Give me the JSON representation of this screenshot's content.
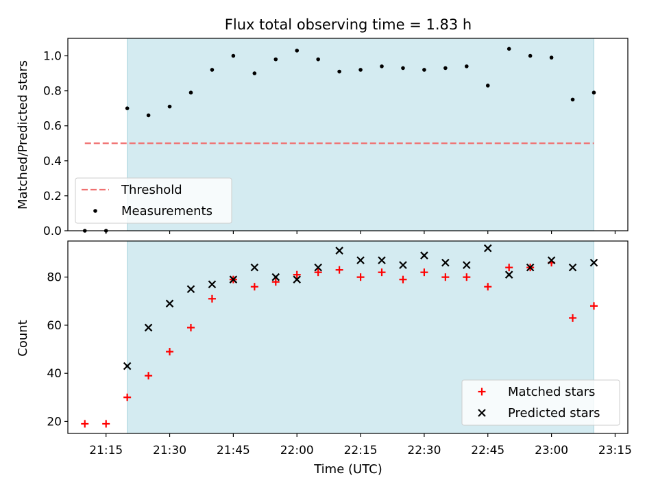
{
  "chart_data": {
    "title": "Flux total observing time = 1.83 h",
    "xlabel": "Time (UTC)",
    "x_ticks": [
      "21:15",
      "21:30",
      "21:45",
      "22:00",
      "22:15",
      "22:30",
      "22:45",
      "23:00",
      "23:15"
    ],
    "x_times": [
      "21:10",
      "21:15",
      "21:20",
      "21:25",
      "21:30",
      "21:35",
      "21:40",
      "21:45",
      "21:50",
      "21:55",
      "22:00",
      "22:05",
      "22:10",
      "22:15",
      "22:20",
      "22:25",
      "22:30",
      "22:35",
      "22:40",
      "22:45",
      "22:50",
      "22:55",
      "23:00",
      "23:05",
      "23:10"
    ],
    "observing_window": [
      "21:20",
      "23:10"
    ],
    "panels": [
      {
        "type": "scatter",
        "ylabel": "Matched/Predicted stars",
        "ylim": [
          0,
          1.1
        ],
        "y_ticks": [
          "0.0",
          "0.2",
          "0.4",
          "0.6",
          "0.8",
          "1.0"
        ],
        "legend_position": "lower-left",
        "threshold": {
          "name": "Threshold",
          "value": 0.5,
          "color": "#f07070"
        },
        "series": [
          {
            "name": "Measurements",
            "marker": "dot",
            "color": "#000000",
            "values": [
              0.0,
              0.0,
              0.7,
              0.66,
              0.71,
              0.79,
              0.92,
              1.0,
              0.9,
              0.98,
              1.03,
              0.98,
              0.91,
              0.92,
              0.94,
              0.93,
              0.92,
              0.93,
              0.94,
              0.83,
              1.04,
              1.0,
              0.99,
              0.75,
              0.79
            ]
          }
        ]
      },
      {
        "type": "scatter",
        "ylabel": "Count",
        "ylim": [
          15,
          95
        ],
        "y_ticks": [
          "20",
          "40",
          "60",
          "80"
        ],
        "legend_position": "lower-right",
        "series": [
          {
            "name": "Matched stars",
            "marker": "plus",
            "color": "#ff0000",
            "values": [
              19,
              19,
              30,
              39,
              49,
              59,
              71,
              79,
              76,
              78,
              81,
              82,
              83,
              80,
              82,
              79,
              82,
              80,
              80,
              76,
              84,
              84,
              86,
              63,
              68
            ]
          },
          {
            "name": "Predicted stars",
            "marker": "x",
            "color": "#000000",
            "values": [
              null,
              null,
              43,
              59,
              69,
              75,
              77,
              79,
              84,
              80,
              79,
              84,
              91,
              87,
              87,
              85,
              89,
              86,
              85,
              92,
              81,
              84,
              87,
              84,
              86
            ]
          }
        ]
      }
    ],
    "colors": {
      "window": "#d4ebf1",
      "window_edge": "#a9d3dd",
      "axes": "#000000"
    }
  }
}
